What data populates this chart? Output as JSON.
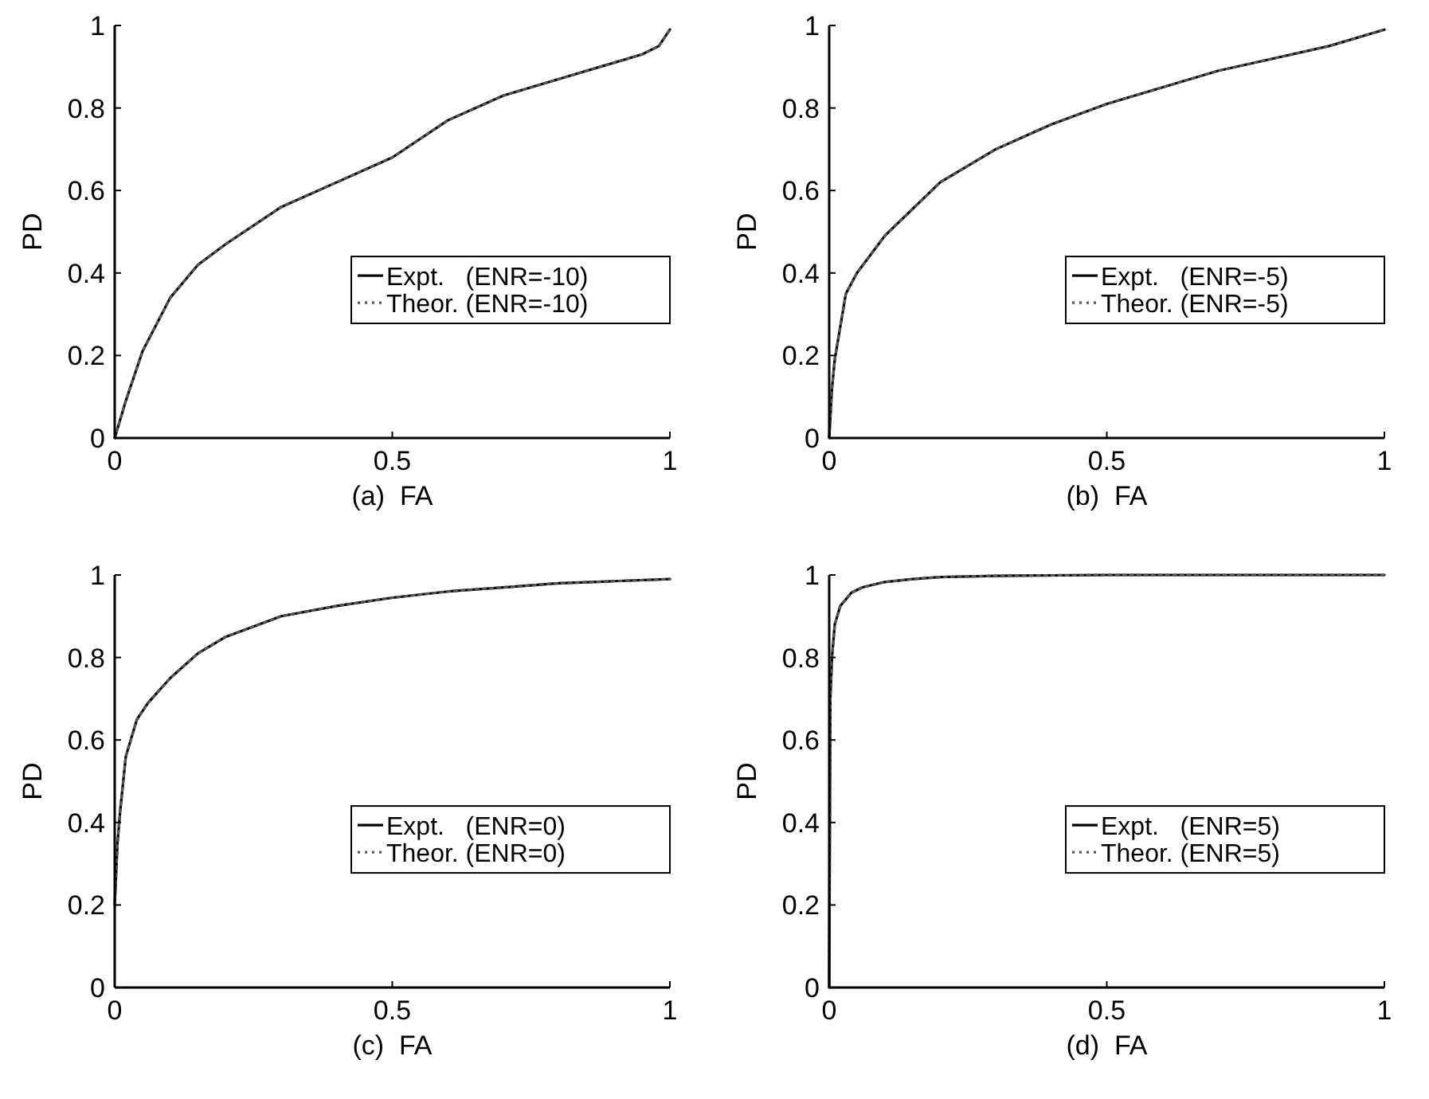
{
  "chart_data": [
    {
      "type": "line",
      "xlabel": "(a)  FA",
      "ylabel": "PD",
      "xlim": [
        0,
        1
      ],
      "ylim": [
        0,
        1
      ],
      "xticks": [
        0,
        0.5,
        1
      ],
      "yticks": [
        0,
        0.2,
        0.4,
        0.6,
        0.8,
        1
      ],
      "legend": "right",
      "grid": false,
      "series": [
        {
          "name": "Expt.   (ENR=-10)",
          "color": "#000000",
          "line_style": "solid",
          "x": [
            0,
            0.02,
            0.05,
            0.1,
            0.15,
            0.2,
            0.3,
            0.4,
            0.5,
            0.6,
            0.7,
            0.8,
            0.9,
            0.95,
            0.98,
            1
          ],
          "values": [
            0,
            0.09,
            0.21,
            0.34,
            0.42,
            0.47,
            0.56,
            0.62,
            0.68,
            0.77,
            0.83,
            0.87,
            0.91,
            0.93,
            0.95,
            0.99
          ]
        },
        {
          "name": "Theor. (ENR=-10)",
          "color": "#555555",
          "line_style": "dotted",
          "x": [
            0,
            0.02,
            0.05,
            0.1,
            0.15,
            0.2,
            0.3,
            0.4,
            0.5,
            0.6,
            0.7,
            0.8,
            0.9,
            0.95,
            0.98,
            1
          ],
          "values": [
            0,
            0.09,
            0.21,
            0.34,
            0.42,
            0.47,
            0.56,
            0.62,
            0.68,
            0.77,
            0.83,
            0.87,
            0.91,
            0.93,
            0.95,
            0.99
          ]
        }
      ]
    },
    {
      "type": "line",
      "xlabel": "(b)  FA",
      "ylabel": "PD",
      "xlim": [
        0,
        1
      ],
      "ylim": [
        0,
        1
      ],
      "xticks": [
        0,
        0.5,
        1
      ],
      "yticks": [
        0,
        0.2,
        0.4,
        0.6,
        0.8,
        1
      ],
      "legend": "right",
      "grid": false,
      "series": [
        {
          "name": "Expt.   (ENR=-5)",
          "color": "#000000",
          "line_style": "solid",
          "x": [
            0,
            0.005,
            0.01,
            0.03,
            0.05,
            0.1,
            0.15,
            0.2,
            0.3,
            0.4,
            0.5,
            0.6,
            0.7,
            0.8,
            0.9,
            1
          ],
          "values": [
            0,
            0.12,
            0.19,
            0.35,
            0.4,
            0.49,
            0.555,
            0.62,
            0.7,
            0.76,
            0.81,
            0.85,
            0.89,
            0.92,
            0.95,
            0.99
          ]
        },
        {
          "name": "Theor. (ENR=-5)",
          "color": "#555555",
          "line_style": "dotted",
          "x": [
            0,
            0.005,
            0.01,
            0.03,
            0.05,
            0.1,
            0.15,
            0.2,
            0.3,
            0.4,
            0.5,
            0.6,
            0.7,
            0.8,
            0.9,
            1
          ],
          "values": [
            0,
            0.12,
            0.19,
            0.35,
            0.4,
            0.49,
            0.555,
            0.62,
            0.7,
            0.76,
            0.81,
            0.85,
            0.89,
            0.92,
            0.95,
            0.99
          ]
        }
      ]
    },
    {
      "type": "line",
      "xlabel": "(c)  FA",
      "ylabel": "PD",
      "xlim": [
        0,
        1
      ],
      "ylim": [
        0,
        1
      ],
      "xticks": [
        0,
        0.5,
        1
      ],
      "yticks": [
        0,
        0.2,
        0.4,
        0.6,
        0.8,
        1
      ],
      "legend": "right",
      "grid": false,
      "series": [
        {
          "name": "Expt.   (ENR=0)",
          "color": "#000000",
          "line_style": "solid",
          "x": [
            0,
            0.005,
            0.01,
            0.02,
            0.04,
            0.06,
            0.1,
            0.15,
            0.2,
            0.3,
            0.4,
            0.5,
            0.6,
            0.7,
            0.8,
            0.9,
            1
          ],
          "values": [
            0.2,
            0.35,
            0.43,
            0.56,
            0.65,
            0.69,
            0.75,
            0.81,
            0.85,
            0.9,
            0.925,
            0.945,
            0.96,
            0.97,
            0.98,
            0.985,
            0.99
          ]
        },
        {
          "name": "Theor. (ENR=0)",
          "color": "#555555",
          "line_style": "dotted",
          "x": [
            0,
            0.005,
            0.01,
            0.02,
            0.04,
            0.06,
            0.1,
            0.15,
            0.2,
            0.3,
            0.4,
            0.5,
            0.6,
            0.7,
            0.8,
            0.9,
            1
          ],
          "values": [
            0.2,
            0.35,
            0.43,
            0.56,
            0.65,
            0.69,
            0.75,
            0.81,
            0.85,
            0.9,
            0.925,
            0.945,
            0.96,
            0.97,
            0.98,
            0.985,
            0.99
          ]
        }
      ]
    },
    {
      "type": "line",
      "xlabel": "(d)  FA",
      "ylabel": "PD",
      "xlim": [
        0,
        1
      ],
      "ylim": [
        0,
        1
      ],
      "xticks": [
        0,
        0.5,
        1
      ],
      "yticks": [
        0,
        0.2,
        0.4,
        0.6,
        0.8,
        1
      ],
      "legend": "right",
      "grid": false,
      "series": [
        {
          "name": "Expt.   (ENR=5)",
          "color": "#000000",
          "line_style": "solid",
          "x": [
            0,
            0.002,
            0.005,
            0.01,
            0.02,
            0.04,
            0.06,
            0.1,
            0.15,
            0.2,
            0.3,
            0.5,
            1
          ],
          "values": [
            0,
            0.7,
            0.8,
            0.88,
            0.925,
            0.957,
            0.97,
            0.983,
            0.99,
            0.995,
            0.998,
            1,
            1
          ]
        },
        {
          "name": "Theor. (ENR=5)",
          "color": "#555555",
          "line_style": "dotted",
          "x": [
            0,
            0.002,
            0.005,
            0.01,
            0.02,
            0.04,
            0.06,
            0.1,
            0.15,
            0.2,
            0.3,
            0.5,
            1
          ],
          "values": [
            0,
            0.7,
            0.8,
            0.88,
            0.925,
            0.957,
            0.97,
            0.983,
            0.99,
            0.995,
            0.998,
            1,
            1
          ]
        }
      ]
    }
  ]
}
